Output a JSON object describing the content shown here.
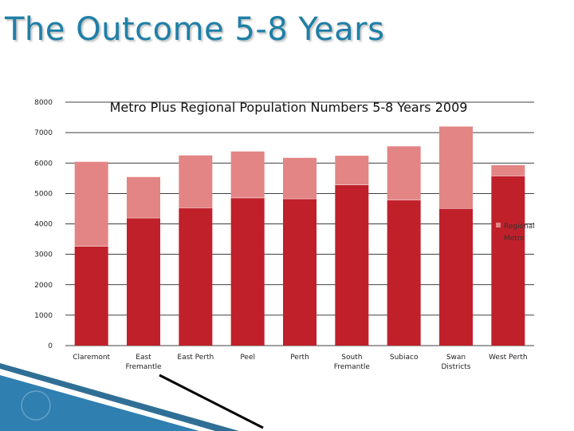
{
  "slide": {
    "title": "The Outcome 5-8 Years"
  },
  "colors": {
    "metro": "#c0202a",
    "regional": "#e38585",
    "title": "#1f7fa6",
    "gridline": "#000000"
  },
  "chart_data": {
    "type": "bar",
    "stacked": true,
    "title": "Metro Plus Regional Population Numbers 5-8 Years 2009",
    "xlabel": "",
    "ylabel": "",
    "ylim": [
      0,
      8000
    ],
    "yticks": [
      0,
      1000,
      2000,
      3000,
      4000,
      5000,
      6000,
      7000,
      8000
    ],
    "grid": true,
    "legend_position": "right",
    "categories": [
      "Claremont",
      "East Fremantle",
      "East Perth",
      "Peel",
      "Perth",
      "South Fremantle",
      "Subiaco",
      "Swan Districts",
      "West Perth"
    ],
    "series": [
      {
        "name": "Metro",
        "color": "#c0202a",
        "values": [
          3270,
          4200,
          4530,
          4860,
          4830,
          5290,
          4790,
          4510,
          5580
        ]
      },
      {
        "name": "Regional",
        "color": "#e38585",
        "values": [
          2770,
          1340,
          1720,
          1520,
          1340,
          950,
          1760,
          2690,
          350
        ]
      }
    ],
    "legend": [
      {
        "label": "Regional",
        "series": 1
      },
      {
        "label": "Metro",
        "series": 0
      }
    ]
  }
}
